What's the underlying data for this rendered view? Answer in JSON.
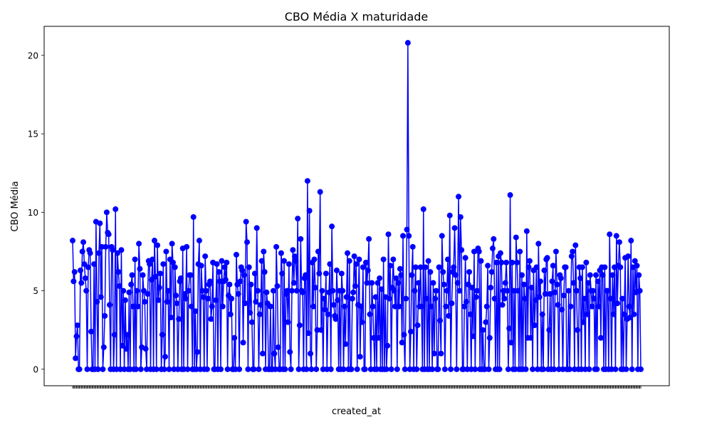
{
  "chart_data": {
    "type": "line",
    "title": "CBO Média X maturidade",
    "xlabel": "created_at",
    "ylabel": "CBO Média",
    "ylim": [
      -1.05,
      21.85
    ],
    "yticks": [
      0,
      5,
      10,
      15,
      20
    ],
    "grid": false,
    "legend": null,
    "marker": "circle",
    "color": "#0000ff",
    "series": [
      {
        "values": [
          8.2,
          5.6,
          6.2,
          0.7,
          2.1,
          2.8,
          0.0,
          0.0,
          6.3,
          5.5,
          7.5,
          8.1,
          6.7,
          5.8,
          5.0,
          0.0,
          6.5,
          7.6,
          7.4,
          2.4,
          0.0,
          0.0,
          6.7,
          0.0,
          9.4,
          4.3,
          0.0,
          7.4,
          9.3,
          4.6,
          7.8,
          0.0,
          1.4,
          3.4,
          7.8,
          10.0,
          8.7,
          8.6,
          4.1,
          0.0,
          7.8,
          7.6,
          0.0,
          2.2,
          10.2,
          0.0,
          7.4,
          6.2,
          5.3,
          0.0,
          7.6,
          1.5,
          5.0,
          0.0,
          4.4,
          1.3,
          2.2,
          0.0,
          4.9,
          0.0,
          5.4,
          6.0,
          4.0,
          0.0,
          7.0,
          0.0,
          5.0,
          4.0,
          8.0,
          6.4,
          0.0,
          1.4,
          6.0,
          5.0,
          4.3,
          1.3,
          0.0,
          4.8,
          6.9,
          6.7,
          0.0,
          5.7,
          7.0,
          0.0,
          8.2,
          5.9,
          0.0,
          7.9,
          4.4,
          5.2,
          6.1,
          0.0,
          2.2,
          6.7,
          0.0,
          0.8,
          7.5,
          4.3,
          5.0,
          0.0,
          7.0,
          3.3,
          8.0,
          6.8,
          0.0,
          6.5,
          4.7,
          4.2,
          0.0,
          3.2,
          5.6,
          5.8,
          0.0,
          7.7,
          0.0,
          4.8,
          4.5,
          7.8,
          0.0,
          5.0,
          6.0,
          6.0,
          4.0,
          0.0,
          9.7,
          0.0,
          3.7,
          0.0,
          1.1,
          6.7,
          8.2,
          0.0,
          6.6,
          5.0,
          4.6,
          0.0,
          7.2,
          5.0,
          0.0,
          4.5,
          5.4,
          5.6,
          3.2,
          4.0,
          6.8,
          0.0,
          0.0,
          4.4,
          6.7,
          0.0,
          6.2,
          5.6,
          0.0,
          6.9,
          4.0,
          5.6,
          6.5,
          5.7,
          6.8,
          0.0,
          4.7,
          5.4,
          3.5,
          4.5,
          0.0,
          0.0,
          2.0,
          0.0,
          7.3,
          5.4,
          4.8,
          0.0,
          5.6,
          6.5,
          6.3,
          1.7,
          6.0,
          4.2,
          9.4,
          8.1,
          0.0,
          6.5,
          3.6,
          5.4,
          3.0,
          0.0,
          0.0,
          6.1,
          4.3,
          9.0,
          5.0,
          0.0,
          3.5,
          4.1,
          6.9,
          1.0,
          7.5,
          6.2,
          0.0,
          4.9,
          4.2,
          0.0,
          0.0,
          4.0,
          0.0,
          0.0,
          5.0,
          1.0,
          0.0,
          7.8,
          5.3,
          1.4,
          0.0,
          0.0,
          7.4,
          6.1,
          0.0,
          6.9,
          0.0,
          4.8,
          5.0,
          3.0,
          6.7,
          1.1,
          0.0,
          5.0,
          7.6,
          5.5,
          7.2,
          6.9,
          5.0,
          9.6,
          0.0,
          2.8,
          8.3,
          5.0,
          4.9,
          0.0,
          5.8,
          6.0,
          0.0,
          12.0,
          2.3,
          10.1,
          1.0,
          0.0,
          6.8,
          4.0,
          7.0,
          5.2,
          0.0,
          2.5,
          7.5,
          6.1,
          11.3,
          2.5,
          5.0,
          0.0,
          4.5,
          3.8,
          6.1,
          0.0,
          3.5,
          4.9,
          6.7,
          0.0,
          9.1,
          5.0,
          4.1,
          3.4,
          3.2,
          6.3,
          4.4,
          0.0,
          5.0,
          0.0,
          6.1,
          5.0,
          0.0,
          4.0,
          1.6,
          4.6,
          7.4,
          0.0,
          6.9,
          0.0,
          0.0,
          4.5,
          4.9,
          7.2,
          5.3,
          6.7,
          0.0,
          4.1,
          7.0,
          0.8,
          4.0,
          3.0,
          6.5,
          0.0,
          0.0,
          6.8,
          5.5,
          6.3,
          8.3,
          3.5,
          0.0,
          5.5,
          4.0,
          2.0,
          0.0,
          4.6,
          0.0,
          5.5,
          2.0,
          5.8,
          0.0,
          5.1,
          0.0,
          7.0,
          0.0,
          4.6,
          0.0,
          1.5,
          8.6,
          4.5,
          6.6,
          0.0,
          5.2,
          7.0,
          5.0,
          4.0,
          5.8,
          0.0,
          5.5,
          4.0,
          6.4,
          6.0,
          1.7,
          8.5,
          2.2,
          0.0,
          4.5,
          8.9,
          20.8,
          8.5,
          0.0,
          2.4,
          6.0,
          7.8,
          0.0,
          5.0,
          6.5,
          0.0,
          2.8,
          5.5,
          4.0,
          6.5,
          4.0,
          0.0,
          10.2,
          0.0,
          6.5,
          4.5,
          0.0,
          6.9,
          0.0,
          6.2,
          4.0,
          0.0,
          5.5,
          1.0,
          4.5,
          5.0,
          0.0,
          0.0,
          6.5,
          3.1,
          1.0,
          8.5,
          6.2,
          5.4,
          0.0,
          4.0,
          5.0,
          7.0,
          3.4,
          9.8,
          0.0,
          4.2,
          6.2,
          6.5,
          9.0,
          6.0,
          0.0,
          5.5,
          11.0,
          5.0,
          9.7,
          7.6,
          0.0,
          0.0,
          4.0,
          7.1,
          4.3,
          0.0,
          5.4,
          6.2,
          3.5,
          0.0,
          5.2,
          2.1,
          7.5,
          0.0,
          4.6,
          5.0,
          7.7,
          7.5,
          0.0,
          6.9,
          0.0,
          2.5,
          0.0,
          0.0,
          3.0,
          4.0,
          6.6,
          0.0,
          2.0,
          5.2,
          6.2,
          7.7,
          8.3,
          4.5,
          0.0,
          6.8,
          0.0,
          7.2,
          0.0,
          7.4,
          6.8,
          4.1,
          5.0,
          4.5,
          5.5,
          6.8,
          5.0,
          0.0,
          2.6,
          11.1,
          1.7,
          6.8,
          0.0,
          5.0,
          0.0,
          8.4,
          6.8,
          5.0,
          0.0,
          7.5,
          0.0,
          6.0,
          0.0,
          5.4,
          4.5,
          0.0,
          8.8,
          2.0,
          6.5,
          6.9,
          2.0,
          5.2,
          0.0,
          6.3,
          2.8,
          4.4,
          6.5,
          0.0,
          8.0,
          4.6,
          5.6,
          0.0,
          3.5,
          0.0,
          6.3,
          4.8,
          7.0,
          7.1,
          0.0,
          2.5,
          4.8,
          0.0,
          5.6,
          6.6,
          0.0,
          4.9,
          7.5,
          5.4,
          4.1,
          0.0,
          6.0,
          5.8,
          3.8,
          0.0,
          4.7,
          6.5,
          6.5,
          0.0,
          0.0,
          5.0,
          0.0,
          4.0,
          7.2,
          7.5,
          5.5,
          0.0,
          7.9,
          5.0,
          2.5,
          0.0,
          6.5,
          5.8,
          0.0,
          6.5,
          3.0,
          4.5,
          0.0,
          6.8,
          3.5,
          5.5,
          0.0,
          6.0,
          5.0,
          4.0,
          5.0,
          4.5,
          0.0,
          6.0,
          0.0,
          5.6,
          4.0,
          6.3,
          2.0,
          6.5,
          6.0,
          0.0,
          6.5,
          0.0,
          5.0,
          5.0,
          0.0,
          8.6,
          4.5,
          0.0,
          6.0,
          3.5,
          6.5,
          0.0,
          8.5,
          4.2,
          6.6,
          8.1,
          6.5,
          0.0,
          4.5,
          0.0,
          3.5,
          7.1,
          0.0,
          3.2,
          7.2,
          4.0,
          3.3,
          8.2,
          0.0,
          6.5,
          3.5,
          6.9,
          4.9,
          6.6,
          0.0,
          6.0,
          5.0,
          0.0
        ]
      }
    ]
  }
}
